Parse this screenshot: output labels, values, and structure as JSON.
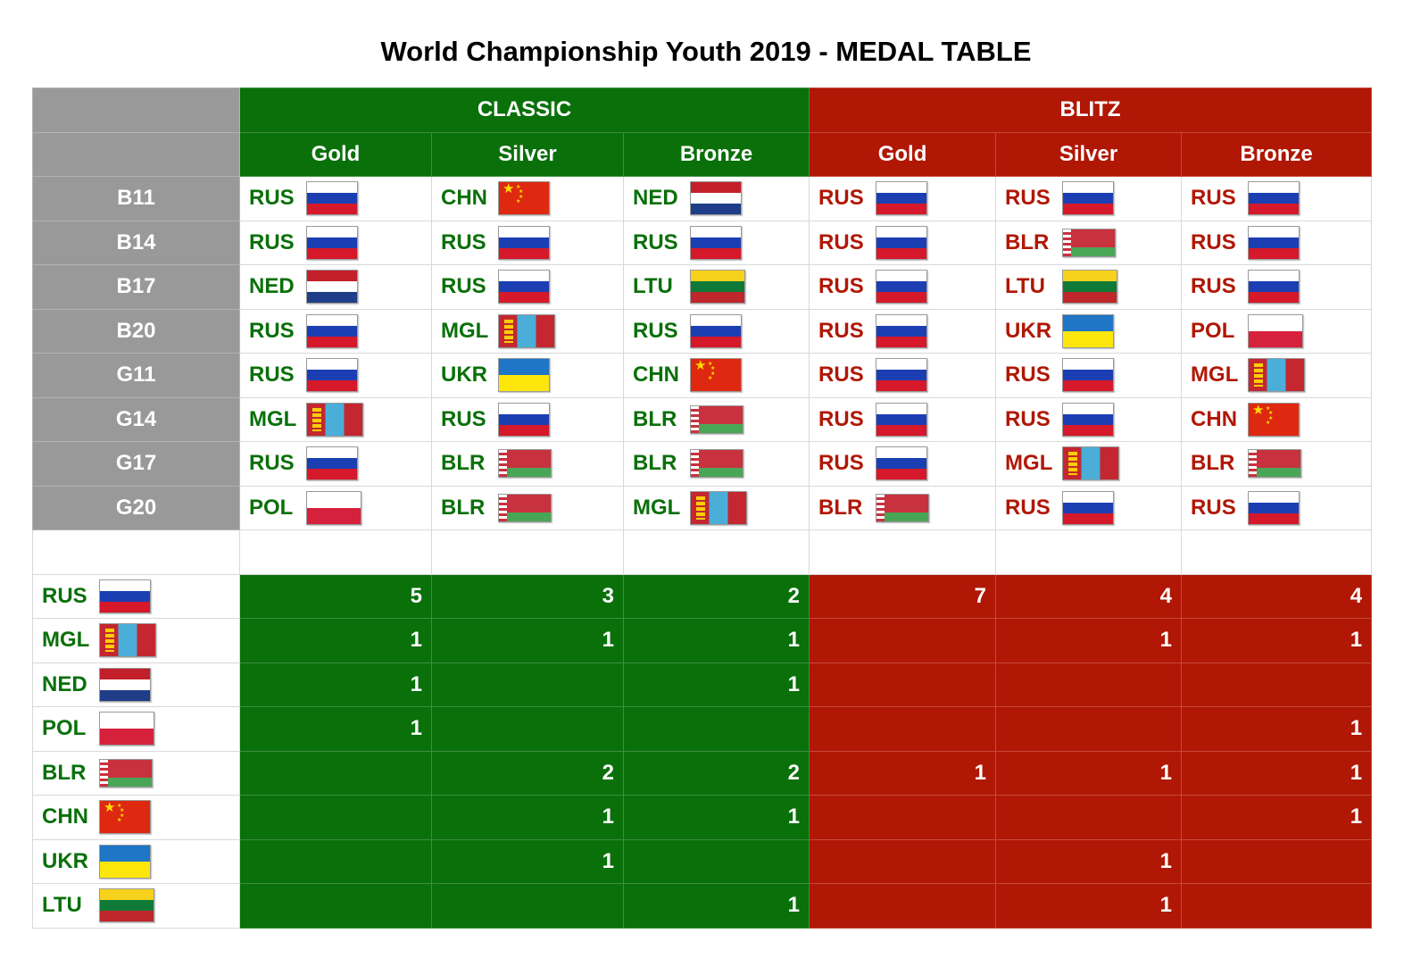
{
  "title": "World Championship Youth 2019 - MEDAL TABLE",
  "colors": {
    "classic": "#0a700a",
    "blitz": "#b01705",
    "category_bg": "#999999"
  },
  "chart_data": {
    "type": "table",
    "groups": [
      "CLASSIC",
      "BLITZ"
    ],
    "medals": [
      "Gold",
      "Silver",
      "Bronze"
    ],
    "categories": [
      {
        "label": "B11",
        "classic": [
          "RUS",
          "CHN",
          "NED"
        ],
        "blitz": [
          "RUS",
          "RUS",
          "RUS"
        ]
      },
      {
        "label": "B14",
        "classic": [
          "RUS",
          "RUS",
          "RUS"
        ],
        "blitz": [
          "RUS",
          "BLR",
          "RUS"
        ]
      },
      {
        "label": "B17",
        "classic": [
          "NED",
          "RUS",
          "LTU"
        ],
        "blitz": [
          "RUS",
          "LTU",
          "RUS"
        ]
      },
      {
        "label": "B20",
        "classic": [
          "RUS",
          "MGL",
          "RUS"
        ],
        "blitz": [
          "RUS",
          "UKR",
          "POL"
        ]
      },
      {
        "label": "G11",
        "classic": [
          "RUS",
          "UKR",
          "CHN"
        ],
        "blitz": [
          "RUS",
          "RUS",
          "MGL"
        ]
      },
      {
        "label": "G14",
        "classic": [
          "MGL",
          "RUS",
          "BLR"
        ],
        "blitz": [
          "RUS",
          "RUS",
          "CHN"
        ]
      },
      {
        "label": "G17",
        "classic": [
          "RUS",
          "BLR",
          "BLR"
        ],
        "blitz": [
          "RUS",
          "MGL",
          "BLR"
        ]
      },
      {
        "label": "G20",
        "classic": [
          "POL",
          "BLR",
          "MGL"
        ],
        "blitz": [
          "BLR",
          "RUS",
          "RUS"
        ]
      }
    ],
    "totals": [
      {
        "country": "RUS",
        "classic": [
          "5",
          "3",
          "2"
        ],
        "blitz": [
          "7",
          "4",
          "4"
        ]
      },
      {
        "country": "MGL",
        "classic": [
          "1",
          "1",
          "1"
        ],
        "blitz": [
          "",
          "1",
          "1"
        ]
      },
      {
        "country": "NED",
        "classic": [
          "1",
          "",
          "1"
        ],
        "blitz": [
          "",
          "",
          ""
        ]
      },
      {
        "country": "POL",
        "classic": [
          "1",
          "",
          ""
        ],
        "blitz": [
          "",
          "",
          "1"
        ]
      },
      {
        "country": "BLR",
        "classic": [
          "",
          "2",
          "2"
        ],
        "blitz": [
          "1",
          "1",
          "1"
        ]
      },
      {
        "country": "CHN",
        "classic": [
          "",
          "1",
          "1"
        ],
        "blitz": [
          "",
          "",
          "1"
        ]
      },
      {
        "country": "UKR",
        "classic": [
          "",
          "1",
          ""
        ],
        "blitz": [
          "",
          "1",
          ""
        ]
      },
      {
        "country": "LTU",
        "classic": [
          "",
          "",
          "1"
        ],
        "blitz": [
          "",
          "1",
          ""
        ]
      }
    ]
  }
}
